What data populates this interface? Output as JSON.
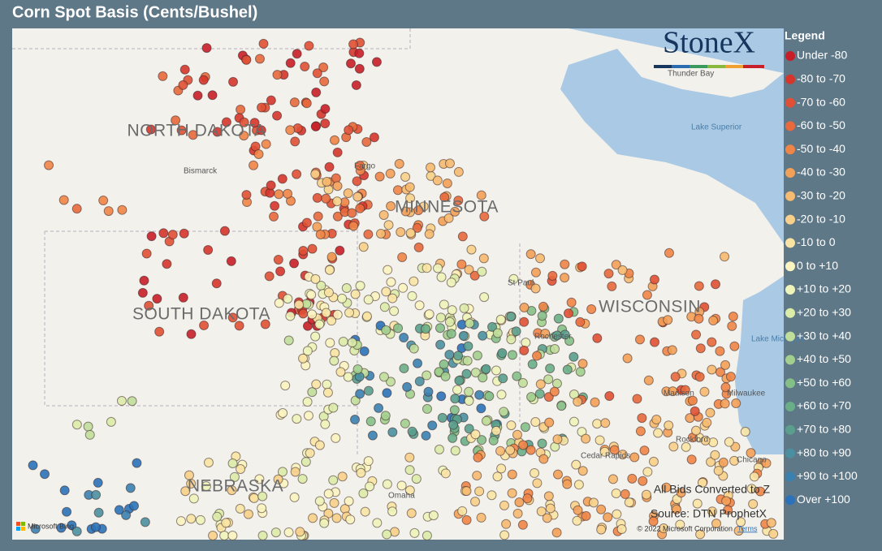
{
  "title": "Corn Spot Basis (Cents/Bushel)",
  "logo": "StoneX",
  "legend": {
    "title": "Legend",
    "items": [
      {
        "label": "Under -80",
        "color": "#c81e28"
      },
      {
        "label": "-80 to -70",
        "color": "#d6352c"
      },
      {
        "label": "-70 to -60",
        "color": "#e05034"
      },
      {
        "label": "-60 to -50",
        "color": "#e8693c"
      },
      {
        "label": "-50 to -40",
        "color": "#ef8547"
      },
      {
        "label": "-40 to -30",
        "color": "#f3a058"
      },
      {
        "label": "-30 to -20",
        "color": "#f6ba70"
      },
      {
        "label": "-20 to -10",
        "color": "#f8d08a"
      },
      {
        "label": "-10 to 0",
        "color": "#fae4a4"
      },
      {
        "label": "0 to +10",
        "color": "#fbf4c0"
      },
      {
        "label": "+10 to +20",
        "color": "#eef4ba"
      },
      {
        "label": "+20 to +30",
        "color": "#dbeba8"
      },
      {
        "label": "+30 to +40",
        "color": "#c0de9a"
      },
      {
        "label": "+40 to +50",
        "color": "#a2cf8e"
      },
      {
        "label": "+50 to +60",
        "color": "#85bf88"
      },
      {
        "label": "+60 to +70",
        "color": "#6aae88"
      },
      {
        "label": "+70 to +80",
        "color": "#5a9f8e"
      },
      {
        "label": "+80 to +90",
        "color": "#4b90a0"
      },
      {
        "label": "+90 to +100",
        "color": "#3a81b0"
      },
      {
        "label": "Over +100",
        "color": "#2b72b8"
      }
    ]
  },
  "map_labels": {
    "states": [
      "NORTH DAKOTA",
      "MINNESOTA",
      "SOUTH DAKOTA",
      "WISCONSIN",
      "NEBRASKA"
    ],
    "places": [
      "Bismarck",
      "Fargo",
      "Thunder Bay",
      "St Paul",
      "Rochester",
      "Madison",
      "Milwaukee",
      "Rockford",
      "Chicago",
      "Cedar Rapids",
      "Omaha"
    ],
    "water": [
      "Lake Superior",
      "Lake Michigan"
    ]
  },
  "notes": {
    "conversion": "All Bids Converted to Z",
    "source": "Source: DTN ProphetX",
    "copyright": "© 2022 Microsoft Corporation",
    "terms": "Terms",
    "provider": "Microsoft Bing"
  }
}
